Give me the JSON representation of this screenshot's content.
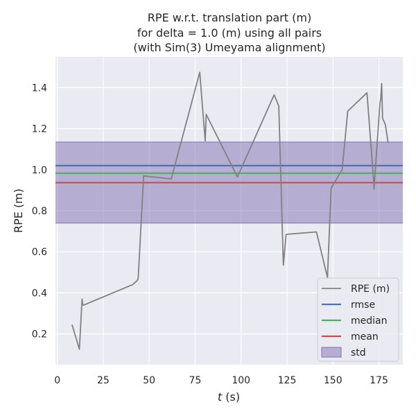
{
  "chart_data": {
    "type": "line",
    "title_lines": [
      "RPE w.r.t. translation part (m)",
      "for delta = 1.0 (m) using all pairs",
      "(with Sim(3) Umeyama alignment)"
    ],
    "xlabel_italic": "t",
    "xlabel_unit": " (s)",
    "ylabel": "RPE (m)",
    "xlim": [
      -1,
      188
    ],
    "ylim": [
      0.05,
      1.55
    ],
    "xticks": [
      0,
      25,
      50,
      75,
      100,
      125,
      150,
      175
    ],
    "yticks": [
      0.2,
      0.4,
      0.6,
      0.8,
      1.0,
      1.2,
      1.4
    ],
    "ytick_labels": [
      "0.2",
      "0.4",
      "0.6",
      "0.8",
      "1.0",
      "1.2",
      "1.4"
    ],
    "grid": true,
    "legend_position": "lower right",
    "series": [
      {
        "name": "RPE (m)",
        "color": "#808080",
        "x": [
          8.0,
          12.0,
          13.5,
          13.8,
          14.2,
          41.0,
          43.5,
          44.0,
          47.0,
          62.0,
          77.5,
          80.5,
          81.0,
          98.0,
          118.0,
          120.5,
          123.0,
          124.5,
          141.0,
          147.0,
          149.0,
          155.0,
          158.0,
          168.5,
          172.0,
          172.3,
          175.5,
          176.0,
          176.5,
          177.0,
          178.5,
          180.0
        ],
        "y": [
          0.245,
          0.125,
          0.37,
          0.345,
          0.34,
          0.44,
          0.46,
          0.47,
          0.97,
          0.955,
          1.475,
          1.14,
          1.27,
          0.965,
          1.365,
          1.31,
          0.535,
          0.685,
          0.697,
          0.475,
          0.91,
          1.0,
          1.285,
          1.375,
          0.96,
          0.905,
          1.32,
          1.35,
          1.42,
          1.25,
          1.22,
          1.13
        ]
      }
    ],
    "stats": [
      {
        "name": "rmse",
        "value": 1.02,
        "color": "#4c72b0"
      },
      {
        "name": "median",
        "value": 0.983,
        "color": "#55a868"
      },
      {
        "name": "mean",
        "value": 0.937,
        "color": "#c44e52"
      }
    ],
    "std_band": {
      "name": "std",
      "low": 0.74,
      "high": 1.135,
      "color": "#8172b2"
    }
  }
}
